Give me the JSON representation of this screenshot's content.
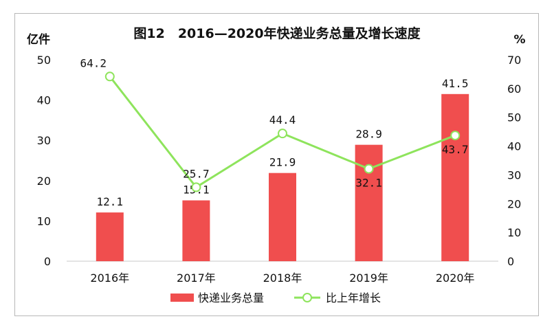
{
  "chart_data": {
    "type": "bar",
    "title": "图12　2016—2020年快递业务总量及增长速度",
    "categories": [
      "2016年",
      "2017年",
      "2018年",
      "2019年",
      "2020年"
    ],
    "y_left": {
      "unit": "亿件",
      "ylim": [
        0,
        50
      ],
      "ticks": [
        0,
        10,
        20,
        30,
        40,
        50
      ]
    },
    "y_right": {
      "unit": "%",
      "ylim": [
        0,
        70
      ],
      "ticks": [
        0,
        10,
        20,
        30,
        40,
        50,
        60,
        70
      ]
    },
    "series": [
      {
        "name": "快递业务总量",
        "type": "bar",
        "axis": "left",
        "color": "#f04e4e",
        "values": [
          12.1,
          15.1,
          21.9,
          28.9,
          41.5
        ],
        "labels": [
          "12.1",
          "15.1",
          "21.9",
          "28.9",
          "41.5"
        ]
      },
      {
        "name": "比上年增长",
        "type": "line",
        "axis": "right",
        "color": "#8ee45c",
        "values": [
          64.2,
          25.7,
          44.4,
          32.1,
          43.7
        ],
        "labels": [
          "64.2",
          "25.7",
          "44.4",
          "32.1",
          "43.7"
        ]
      }
    ],
    "grid": false,
    "legend": "bottom"
  }
}
